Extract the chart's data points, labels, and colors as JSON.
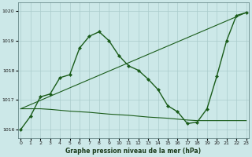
{
  "title": "Graphe pression niveau de la mer (hPa)",
  "bg_color": "#cce8e8",
  "grid_color": "#aacccc",
  "line_color": "#1a5c1a",
  "xlim": [
    -0.3,
    23.3
  ],
  "ylim": [
    1015.7,
    1020.3
  ],
  "yticks": [
    1016,
    1017,
    1018,
    1019,
    1020
  ],
  "xticks": [
    0,
    1,
    2,
    3,
    4,
    5,
    6,
    7,
    8,
    9,
    10,
    11,
    12,
    13,
    14,
    15,
    16,
    17,
    18,
    19,
    20,
    21,
    22,
    23
  ],
  "line1_x": [
    0,
    1,
    2,
    3,
    4,
    5,
    6,
    7,
    8,
    9,
    10,
    11,
    12,
    13,
    14,
    15,
    16,
    17,
    18,
    19,
    20,
    21,
    22,
    23
  ],
  "line1_y": [
    1016.0,
    1016.45,
    1017.1,
    1017.2,
    1017.75,
    1017.85,
    1018.75,
    1019.15,
    1019.3,
    1019.0,
    1018.5,
    1018.15,
    1018.0,
    1017.7,
    1017.35,
    1016.8,
    1016.6,
    1016.2,
    1016.25,
    1016.7,
    1017.8,
    1019.0,
    1019.85,
    1019.95
  ],
  "line2_x": [
    0,
    1,
    2,
    3,
    4,
    5,
    6,
    7,
    8,
    9,
    10,
    11,
    12,
    13,
    14,
    15,
    16,
    17,
    18,
    19,
    20,
    21,
    22,
    23
  ],
  "line2_y": [
    1016.7,
    1016.7,
    1016.7,
    1016.68,
    1016.65,
    1016.62,
    1016.6,
    1016.58,
    1016.55,
    1016.52,
    1016.5,
    1016.48,
    1016.45,
    1016.42,
    1016.4,
    1016.38,
    1016.35,
    1016.32,
    1016.3,
    1016.3,
    1016.3,
    1016.3,
    1016.3,
    1016.3
  ],
  "line3_x": [
    0,
    23
  ],
  "line3_y": [
    1016.7,
    1019.95
  ]
}
